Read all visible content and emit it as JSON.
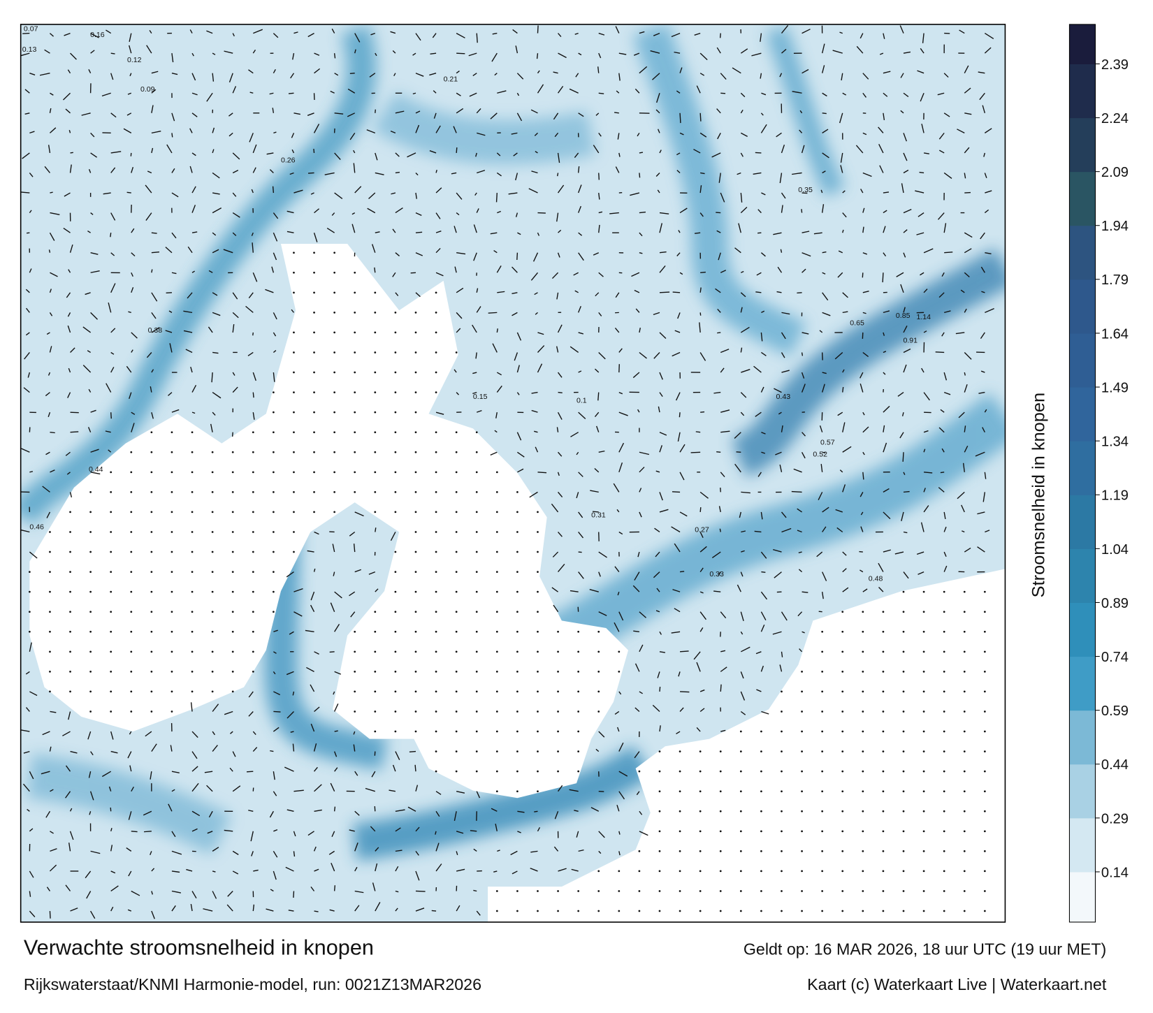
{
  "header": {
    "title": "Verwachte stroomsnelheid in knopen",
    "valid_time": "Geldt op: 16 MAR 2026, 18 uur UTC (19 uur MET)",
    "source": "Rijkswaterstaat/KNMI Harmonie-model, run: 0021Z13MAR2026",
    "credit": "Kaart (c) Waterkaart Live | Waterkaart.net"
  },
  "colorbar": {
    "label": "Stroomsnelheid in knopen",
    "clim": [
      0,
      2.5
    ],
    "ticks": [
      0.14,
      0.29,
      0.44,
      0.59,
      0.74,
      0.89,
      1.04,
      1.19,
      1.34,
      1.49,
      1.64,
      1.79,
      1.94,
      2.09,
      2.24,
      2.39
    ],
    "colors": [
      "#f3f8fb",
      "#d4e8f2",
      "#a9d1e4",
      "#7cb9d6",
      "#3f9cc6",
      "#2f8fba",
      "#2d84ad",
      "#2c79a4",
      "#2f6ea0",
      "#30659c",
      "#2f5e94",
      "#2e588c",
      "#2d5480",
      "#2a5563",
      "#243e5a",
      "#1f2c4c",
      "#1a1c3c"
    ]
  },
  "map": {
    "labels": [
      0.07,
      0.16,
      0.13,
      0.12,
      0.09,
      0.26,
      0.35,
      0.21,
      0.44,
      0.46,
      0.38,
      0.65,
      0.85,
      1.14,
      0.91,
      0.57,
      0.52,
      0.48,
      0.33,
      0.27,
      0.15,
      0.1,
      0.43,
      0.31
    ]
  }
}
